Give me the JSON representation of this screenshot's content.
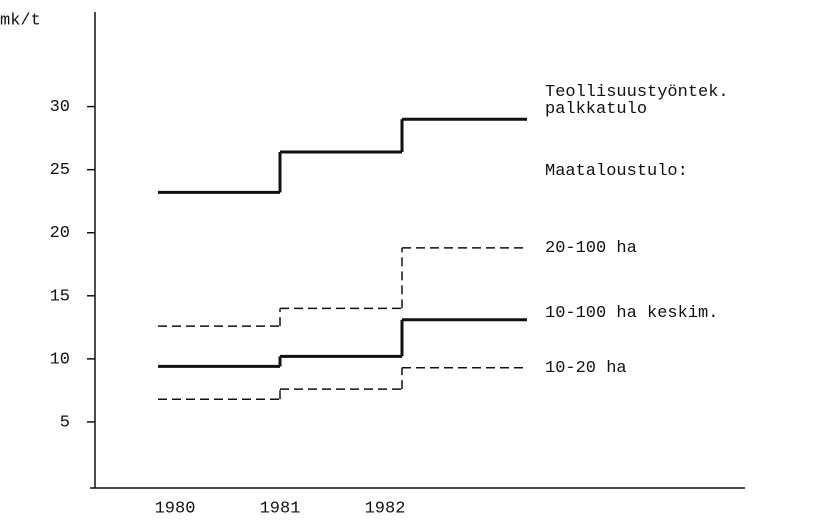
{
  "chart_data": {
    "type": "line",
    "y_label": "mk/t",
    "annotation": "Maataloustulo:",
    "categories": [
      "1980",
      "1981",
      "1982"
    ],
    "ylim": [
      0,
      37.5
    ],
    "yticks": [
      5,
      10,
      15,
      20,
      25,
      30
    ],
    "series": [
      {
        "name": "Teollisuustyöntek. palkkatulo",
        "color": "#111111",
        "dashed": false,
        "values": [
          23.2,
          26.4,
          29.0
        ]
      },
      {
        "name": "20-100 ha",
        "color": "#111111",
        "dashed": true,
        "values": [
          12.6,
          14.0,
          18.8
        ]
      },
      {
        "name": "10-100 ha keskim.",
        "color": "#111111",
        "dashed": false,
        "values": [
          9.4,
          10.2,
          13.1
        ]
      },
      {
        "name": "10-20 ha",
        "color": "#111111",
        "dashed": true,
        "values": [
          6.8,
          7.6,
          9.3
        ]
      }
    ]
  }
}
